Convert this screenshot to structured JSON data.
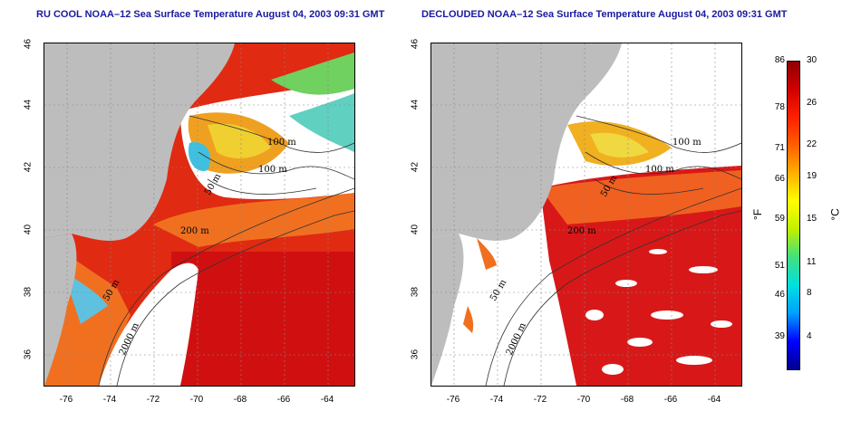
{
  "left_panel": {
    "title": "RU COOL NOAA–12 Sea Surface Temperature August 04, 2003 09:31 GMT"
  },
  "right_panel": {
    "title": "DECLOUDED NOAA–12 Sea Surface Temperature August 04, 2003 09:31 GMT"
  },
  "axes": {
    "lat_ticks": [
      "46",
      "44",
      "42",
      "40",
      "38",
      "36"
    ],
    "lon_ticks": [
      "-76",
      "-74",
      "-72",
      "-70",
      "-68",
      "-66",
      "-64"
    ]
  },
  "contour_labels": {
    "m100a": "100 m",
    "m100b": "100 m",
    "m50a": "50 m",
    "m200": "200 m",
    "m50b": "50 m",
    "m2000": "2000 m"
  },
  "colorbar": {
    "fahrenheit_unit": "°F",
    "celsius_unit": "°C",
    "fahrenheit_ticks": [
      "86",
      "78",
      "71",
      "66",
      "59",
      "51",
      "46",
      "39"
    ],
    "celsius_ticks": [
      "30",
      "26",
      "22",
      "19",
      "15",
      "11",
      "8",
      "4"
    ],
    "colors": [
      "#00008b",
      "#0000ff",
      "#00a0ff",
      "#00e0e0",
      "#40e080",
      "#c0f000",
      "#ffff00",
      "#ffb000",
      "#ff6000",
      "#ff2000",
      "#d00000",
      "#900000"
    ]
  },
  "map_colors": {
    "land": "#bdbdbd",
    "cloud": "#ffffff",
    "warm": "#e02010",
    "hot": "#d01010",
    "orange": "#f07020",
    "yellow": "#f0c020",
    "cyan": "#40d0e0",
    "green": "#70d060"
  }
}
